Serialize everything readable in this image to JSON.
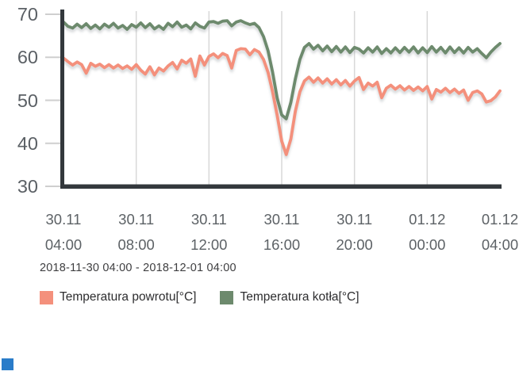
{
  "chart_data": {
    "type": "line",
    "x_range_hours": 24,
    "sample_interval_hours": 0.25,
    "x_ticks": [
      {
        "date": "30.11",
        "time": "04:00",
        "t": 0,
        "grid": false
      },
      {
        "date": "30.11",
        "time": "08:00",
        "t": 4,
        "grid": true
      },
      {
        "date": "30.11",
        "time": "12:00",
        "t": 8,
        "grid": true
      },
      {
        "date": "30.11",
        "time": "16:00",
        "t": 12,
        "grid": true
      },
      {
        "date": "30.11",
        "time": "20:00",
        "t": 16,
        "grid": true
      },
      {
        "date": "01.12",
        "time": "00:00",
        "t": 20,
        "grid": true
      },
      {
        "date": "01.12",
        "time": "04:00",
        "t": 24,
        "grid": false
      }
    ],
    "y_ticks": [
      {
        "label": "70",
        "value": 70
      },
      {
        "label": "60",
        "value": 60
      },
      {
        "label": "50",
        "value": 50
      },
      {
        "label": "40",
        "value": 40
      },
      {
        "label": "30",
        "value": 30
      }
    ],
    "ylim": [
      30,
      70
    ],
    "grid": "vertical-only",
    "legend_position": "bottom-left",
    "series": [
      {
        "name": "Temperatura powrotu[°C]",
        "color": "#f4907c",
        "values": [
          59.8,
          59.0,
          58.2,
          58.9,
          58.3,
          56.3,
          58.6,
          57.9,
          58.4,
          57.6,
          58.3,
          57.5,
          58.2,
          57.4,
          58.0,
          57.2,
          58.3,
          57.0,
          56.1,
          57.8,
          55.9,
          57.5,
          56.8,
          58.0,
          58.8,
          57.3,
          59.3,
          58.6,
          59.6,
          55.6,
          60.3,
          58.2,
          60.2,
          60.8,
          59.9,
          60.9,
          60.4,
          57.5,
          61.6,
          62.0,
          61.9,
          60.6,
          61.8,
          61.2,
          59.5,
          56.5,
          52.0,
          46.5,
          40.5,
          37.4,
          41.0,
          47.5,
          52.0,
          54.5,
          55.4,
          54.2,
          55.2,
          54.0,
          55.0,
          53.8,
          54.8,
          53.6,
          54.6,
          53.3,
          54.5,
          55.3,
          52.5,
          54.0,
          53.3,
          54.2,
          50.6,
          52.8,
          53.5,
          52.6,
          53.4,
          52.4,
          53.2,
          52.3,
          53.1,
          52.2,
          53.2,
          50.3,
          52.5,
          51.9,
          52.8,
          51.8,
          52.6,
          51.6,
          52.4,
          50.0,
          51.8,
          52.2,
          51.5,
          49.6,
          49.9,
          50.8,
          52.2
        ]
      },
      {
        "name": "Temperatura kotła[°C]",
        "color": "#6d8a6d",
        "values": [
          68.2,
          67.2,
          66.8,
          67.7,
          66.9,
          67.8,
          66.7,
          67.5,
          66.6,
          67.7,
          67.0,
          67.9,
          66.8,
          67.4,
          66.5,
          67.6,
          67.0,
          68.0,
          66.9,
          67.8,
          66.6,
          67.3,
          66.5,
          67.9,
          67.1,
          68.2,
          67.0,
          67.5,
          66.6,
          68.0,
          67.2,
          66.8,
          68.2,
          68.3,
          67.9,
          68.4,
          68.5,
          67.3,
          68.2,
          68.5,
          68.0,
          67.6,
          67.9,
          66.9,
          64.8,
          61.5,
          56.5,
          50.5,
          46.6,
          45.7,
          49.5,
          55.0,
          59.5,
          62.3,
          63.2,
          61.9,
          62.8,
          61.5,
          62.6,
          61.3,
          62.5,
          61.2,
          62.4,
          61.1,
          62.3,
          61.9,
          61.0,
          62.2,
          61.2,
          62.4,
          60.9,
          62.0,
          61.0,
          62.2,
          61.1,
          62.3,
          61.2,
          62.4,
          61.0,
          62.2,
          61.1,
          62.5,
          61.2,
          62.3,
          61.0,
          62.4,
          61.1,
          62.2,
          61.0,
          62.3,
          61.2,
          62.0,
          60.9,
          59.9,
          61.2,
          62.3,
          63.2
        ]
      }
    ]
  },
  "footer": {
    "range_label": "2018-11-30 04:00 - 2018-12-01 04:00"
  },
  "legend": {
    "items": [
      {
        "label": "Temperatura powrotu[°C]",
        "color": "#f4907c"
      },
      {
        "label": "Temperatura kotła[°C]",
        "color": "#6d8a6d"
      }
    ]
  },
  "style_colors": {
    "axis": "#33383c",
    "gridline": "#d8d8d8",
    "tick_mark": "#cfcfcf",
    "corner_square": "#2a7cc9"
  }
}
